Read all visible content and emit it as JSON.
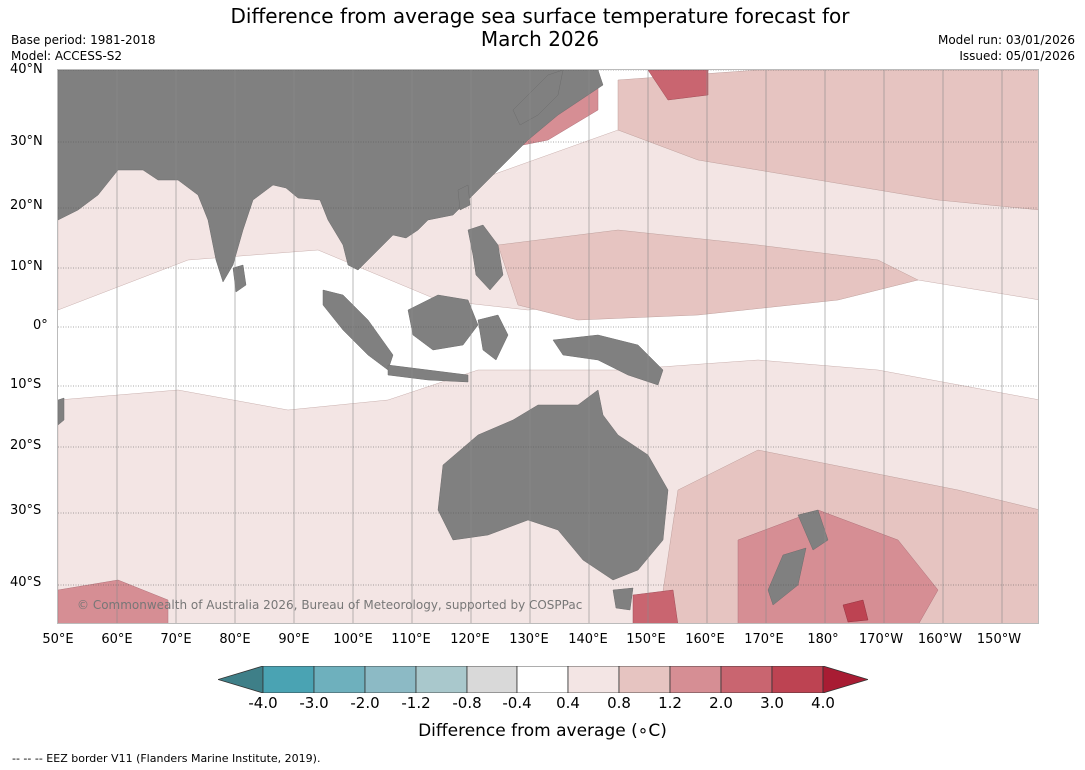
{
  "header": {
    "title_line1": "Difference from average sea surface temperature forecast for",
    "title_line2": "March 2026",
    "base_period": "Base period: 1981-2018",
    "model": "Model: ACCESS-S2",
    "model_run": "Model run: 03/01/2026",
    "issued": "Issued: 05/01/2026"
  },
  "map": {
    "lat_labels": [
      "40°N",
      "30°N",
      "20°N",
      "10°N",
      "0°",
      "10°S",
      "20°S",
      "30°S",
      "40°S"
    ],
    "lon_labels": [
      "50°E",
      "60°E",
      "70°E",
      "80°E",
      "90°E",
      "100°E",
      "110°E",
      "120°E",
      "130°E",
      "140°E",
      "150°E",
      "160°E",
      "170°E",
      "180°",
      "170°W",
      "160°W",
      "150°W"
    ],
    "copyright": "© Commonwealth of Australia 2026, Bureau of Meteorology, supported by COSPPac",
    "colors": {
      "land": "#808080",
      "anomaly_0.4_0.8": "#f3e5e4",
      "anomaly_0.8_1.2": "#e6c4c1",
      "anomaly_1.2_2.0": "#d68e94",
      "anomaly_2.0_3.0": "#c96570",
      "anomaly_3.0_4.0": "#bd4352"
    }
  },
  "legend": {
    "title": "Difference from average (∘C)",
    "tick_labels": [
      "-4.0",
      "-3.0",
      "-2.0",
      "-1.2",
      "-0.8",
      "-0.4",
      "0.4",
      "0.8",
      "1.2",
      "2.0",
      "3.0",
      "4.0"
    ],
    "colors": [
      "#3e7f88",
      "#4aa3b3",
      "#6eb0bd",
      "#8cbac5",
      "#a9c8cc",
      "#d9d9d9",
      "#ffffff",
      "#f3e5e4",
      "#e6c4c1",
      "#d68e94",
      "#c96570",
      "#bd4352",
      "#a81c33"
    ]
  },
  "footnote": "--  --  -- EEZ border V11 (Flanders Marine Institute, 2019)."
}
